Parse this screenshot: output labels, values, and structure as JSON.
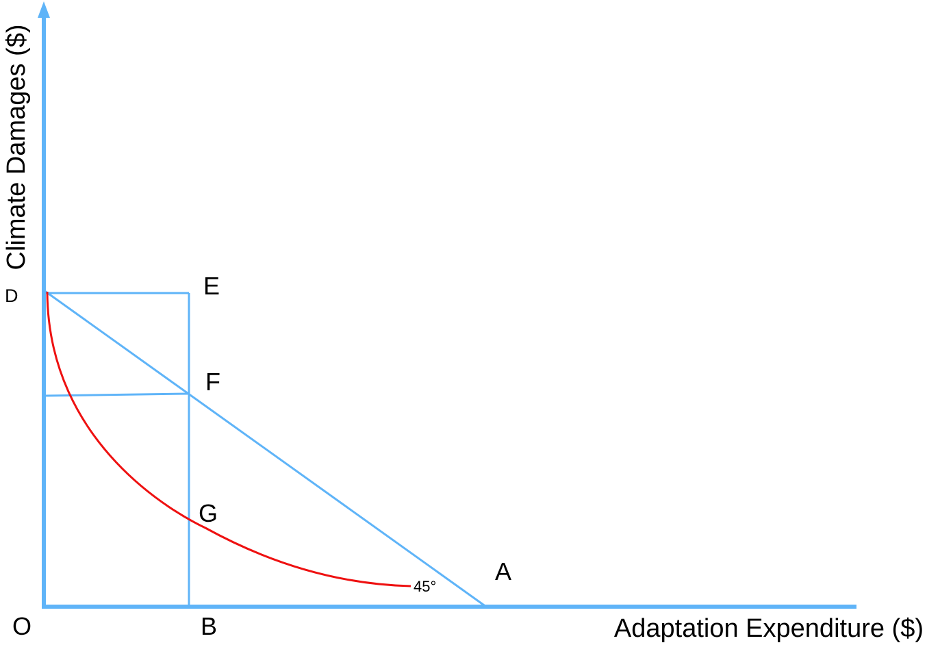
{
  "axes": {
    "x_title": "Adaptation Expenditure ($)",
    "y_title": "Climate Damages ($)"
  },
  "points": {
    "origin": "O",
    "a": "A",
    "b": "B",
    "d": "D",
    "e": "E",
    "f": "F",
    "g": "G"
  },
  "angle_label": "45°",
  "colors": {
    "axes_and_lines": "#5fb4f8",
    "curve": "#ee1111",
    "text": "#000000"
  }
}
